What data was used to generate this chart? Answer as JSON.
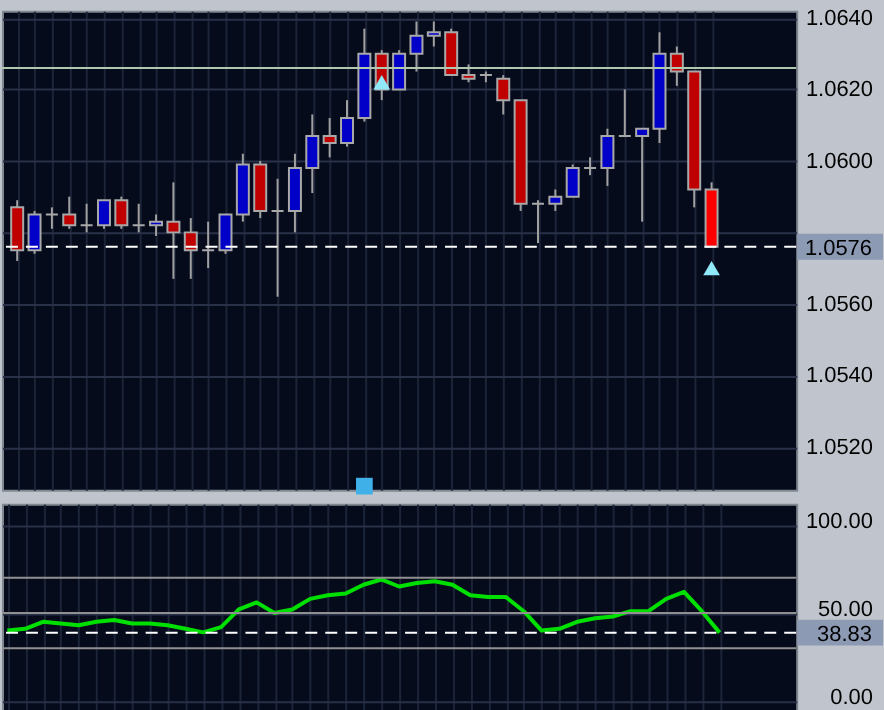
{
  "chart_data": [
    {
      "type": "candlestick",
      "categories": [
        null,
        null,
        null,
        null,
        null,
        null,
        null,
        null,
        null,
        null,
        null,
        null,
        null,
        null,
        null,
        null,
        null,
        null,
        null,
        null,
        null,
        null,
        null,
        null,
        null,
        null,
        null,
        null,
        null,
        null,
        null,
        null,
        null,
        null,
        null,
        null,
        null,
        null,
        null,
        null,
        null
      ],
      "ohlc": [
        [
          1.0587,
          1.0589,
          1.0572,
          1.0575
        ],
        [
          1.0575,
          1.0586,
          1.0574,
          1.0585
        ],
        [
          1.0585,
          1.0587,
          1.0581,
          1.0585
        ],
        [
          1.0585,
          1.059,
          1.0581,
          1.0582
        ],
        [
          1.0582,
          1.0588,
          1.058,
          1.0582
        ],
        [
          1.0582,
          1.0589,
          1.0581,
          1.0589
        ],
        [
          1.0589,
          1.059,
          1.0581,
          1.0582
        ],
        [
          1.0582,
          1.0588,
          1.058,
          1.0582
        ],
        [
          1.0582,
          1.0585,
          1.0579,
          1.0583
        ],
        [
          1.0583,
          1.0594,
          1.0567,
          1.058
        ],
        [
          1.058,
          1.0584,
          1.0567,
          1.0575
        ],
        [
          1.0575,
          1.0583,
          1.057,
          1.0575
        ],
        [
          1.0575,
          1.0585,
          1.0574,
          1.0585
        ],
        [
          1.0585,
          1.0602,
          1.0583,
          1.0599
        ],
        [
          1.0599,
          1.06,
          1.0584,
          1.0586
        ],
        [
          1.0586,
          1.0595,
          1.0562,
          1.0586
        ],
        [
          1.0586,
          1.0602,
          1.058,
          1.0598
        ],
        [
          1.0598,
          1.0613,
          1.0591,
          1.0607
        ],
        [
          1.0607,
          1.0612,
          1.0601,
          1.0605
        ],
        [
          1.0605,
          1.0617,
          1.0604,
          1.0612
        ],
        [
          1.0612,
          1.0637,
          1.0611,
          1.063
        ],
        [
          1.063,
          1.0631,
          1.0617,
          1.062
        ],
        [
          1.062,
          1.0631,
          1.062,
          1.063
        ],
        [
          1.063,
          1.0639,
          1.0625,
          1.0635
        ],
        [
          1.0635,
          1.0639,
          1.0632,
          1.0636
        ],
        [
          1.0636,
          1.0637,
          1.0624,
          1.0624
        ],
        [
          1.0624,
          1.0627,
          1.0622,
          1.0623
        ],
        [
          1.0624,
          1.0625,
          1.0622,
          1.0624
        ],
        [
          1.0623,
          1.0624,
          1.0613,
          1.0617
        ],
        [
          1.0617,
          1.0617,
          1.0586,
          1.0588
        ],
        [
          1.0588,
          1.0589,
          1.0577,
          1.0588
        ],
        [
          1.0588,
          1.0592,
          1.0586,
          1.059
        ],
        [
          1.059,
          1.0599,
          1.059,
          1.0598
        ],
        [
          1.0598,
          1.0601,
          1.0596,
          1.0598
        ],
        [
          1.0598,
          1.0609,
          1.0593,
          1.0607
        ],
        [
          1.0607,
          1.062,
          1.0607,
          1.0607
        ],
        [
          1.0607,
          1.0609,
          1.0583,
          1.0609
        ],
        [
          1.0609,
          1.0636,
          1.0605,
          1.063
        ],
        [
          1.063,
          1.0632,
          1.0621,
          1.0625
        ],
        [
          1.0625,
          1.0625,
          1.0587,
          1.0592
        ],
        [
          1.0592,
          1.0594,
          1.0576,
          1.0576
        ]
      ],
      "colors": [
        "#c00000",
        "#0000c8",
        "#a0a0a0",
        "#c00000",
        "#a0a0a0",
        "#0000c8",
        "#c00000",
        "#a0a0a0",
        "#0000c8",
        "#c00000",
        "#c00000",
        "#a0a0a0",
        "#0000c8",
        "#0000c8",
        "#c00000",
        "#a0a0a0",
        "#0000c8",
        "#0000c8",
        "#c00000",
        "#0000c8",
        "#0000c8",
        "#c00000",
        "#0000c8",
        "#0000c8",
        "#0000c8",
        "#c00000",
        "#c00000",
        "#a0a0a0",
        "#c00000",
        "#c00000",
        "#a0a0a0",
        "#0000c8",
        "#0000c8",
        "#a0a0a0",
        "#0000c8",
        "#a0a0a0",
        "#0000c8",
        "#0000c8",
        "#c00000",
        "#c00000",
        "#ff0000"
      ],
      "series": [
        {
          "type": "scatter",
          "marker": "triangle",
          "color": "#90e8f8",
          "values": [
            null,
            null,
            null,
            null,
            null,
            null,
            null,
            null,
            null,
            null,
            null,
            null,
            null,
            null,
            null,
            null,
            null,
            null,
            null,
            null,
            null,
            1.0622,
            null,
            null,
            null,
            null,
            null,
            null,
            null,
            null,
            null,
            null,
            null,
            null,
            null,
            null,
            null,
            null,
            null,
            null,
            1.057
          ]
        },
        {
          "type": "scatter",
          "marker": "square",
          "color": "#40b0e8",
          "values": [
            null,
            null,
            null,
            null,
            null,
            null,
            null,
            null,
            null,
            null,
            null,
            null,
            null,
            null,
            null,
            null,
            null,
            null,
            null,
            null,
            1.0509,
            null,
            null,
            null,
            null,
            null,
            null,
            null,
            null,
            null,
            null,
            null,
            null,
            null,
            null,
            null,
            null,
            null,
            null,
            null,
            null
          ]
        }
      ],
      "ylim": [
        1.0508,
        1.0642
      ],
      "yticks": [
        {
          "value": 1.052,
          "label": "1.0520"
        },
        {
          "value": 1.054,
          "label": "1.0540"
        },
        {
          "value": 1.056,
          "label": "1.0560"
        },
        {
          "value": 1.058,
          "label": null
        },
        {
          "value": 1.06,
          "label": "1.0600"
        },
        {
          "value": 1.062,
          "label": "1.0620"
        },
        {
          "value": 1.064,
          "label": "1.0640"
        }
      ],
      "ref_lines": [
        {
          "axis": "y",
          "value": 1.0626,
          "color": "#b0c8b0",
          "line_style": "solid"
        },
        {
          "axis": "y",
          "value": 1.0576,
          "label": "1.0576",
          "color": "#ffffff",
          "line_style": "dashed"
        }
      ],
      "grid": true,
      "tick_labels": "y"
    },
    {
      "type": "line",
      "categories": [
        null,
        null,
        null,
        null,
        null,
        null,
        null,
        null,
        null,
        null,
        null,
        null,
        null,
        null,
        null,
        null,
        null,
        null,
        null,
        null,
        null,
        null,
        null,
        null,
        null,
        null,
        null,
        null,
        null,
        null,
        null,
        null,
        null,
        null,
        null,
        null,
        null,
        null,
        null,
        null,
        null
      ],
      "series": [
        {
          "color": "#00e000",
          "values": [
            40,
            41,
            45,
            44,
            43,
            45,
            46,
            44,
            44,
            43,
            41,
            39,
            42,
            52,
            56,
            50,
            52,
            58,
            60,
            61,
            66,
            69,
            65,
            67,
            68,
            66,
            60,
            59,
            59,
            51,
            40,
            41,
            45,
            47,
            48,
            51,
            51,
            58,
            62,
            51,
            38.83
          ]
        }
      ],
      "ylim": [
        -8,
        112
      ],
      "yticks": [
        {
          "value": 0,
          "label": "0.00"
        },
        {
          "value": 50,
          "label": "50.00"
        },
        {
          "value": 100,
          "label": "100.00"
        }
      ],
      "ref_lines": [
        {
          "axis": "y",
          "value": 70,
          "color": "#909090",
          "line_style": "solid"
        },
        {
          "axis": "y",
          "value": 50,
          "color": "#909090",
          "line_style": "solid"
        },
        {
          "axis": "y",
          "value": 30,
          "color": "#909090",
          "line_style": "solid"
        },
        {
          "axis": "y",
          "value": 38.83,
          "label": "38.83",
          "color": "#ffffff",
          "line_style": "dashed"
        }
      ],
      "grid": true,
      "tick_labels": "y"
    }
  ]
}
